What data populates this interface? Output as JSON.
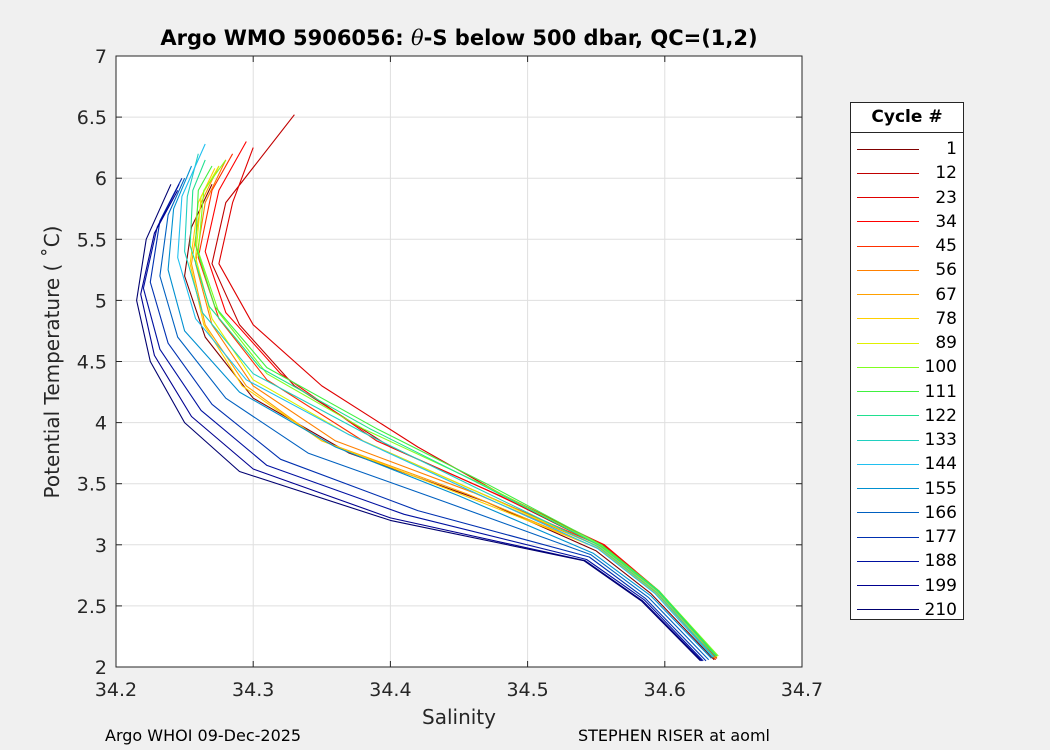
{
  "chart_data": {
    "type": "line",
    "title_prefix": "Argo WMO 5906056: ",
    "title_theta": "θ",
    "title_suffix": "-S below 500 dbar,  QC=(1,2)",
    "xlabel": "Salinity",
    "ylabel": "Potential Temperature ( ˚C)",
    "xlim": [
      34.2,
      34.7
    ],
    "ylim": [
      2,
      7
    ],
    "xticks": [
      34.2,
      34.3,
      34.4,
      34.5,
      34.6,
      34.7
    ],
    "yticks": [
      2,
      2.5,
      3,
      3.5,
      4,
      4.5,
      5,
      5.5,
      6,
      6.5,
      7
    ],
    "xtick_labels": [
      "34.2",
      "34.3",
      "34.4",
      "34.5",
      "34.6",
      "34.7"
    ],
    "ytick_labels": [
      "2",
      "2.5",
      "3",
      "3.5",
      "4",
      "4.5",
      "5",
      "5.5",
      "6",
      "6.5",
      "7"
    ],
    "grid": true,
    "legend_title": "Cycle #",
    "series": [
      {
        "name": "1",
        "color": "#800000",
        "points": [
          [
            34.636,
            2.06
          ],
          [
            34.59,
            2.6
          ],
          [
            34.55,
            2.95
          ],
          [
            34.47,
            3.35
          ],
          [
            34.37,
            3.75
          ],
          [
            34.3,
            4.2
          ],
          [
            34.265,
            4.7
          ],
          [
            34.25,
            5.2
          ],
          [
            34.255,
            5.6
          ],
          [
            34.27,
            5.95
          ]
        ]
      },
      {
        "name": "12",
        "color": "#c00000",
        "points": [
          [
            34.638,
            2.07
          ],
          [
            34.595,
            2.6
          ],
          [
            34.555,
            2.98
          ],
          [
            34.48,
            3.4
          ],
          [
            34.4,
            3.8
          ],
          [
            34.33,
            4.3
          ],
          [
            34.29,
            4.8
          ],
          [
            34.27,
            5.3
          ],
          [
            34.28,
            5.8
          ],
          [
            34.33,
            6.52
          ]
        ]
      },
      {
        "name": "23",
        "color": "#e00000",
        "points": [
          [
            34.637,
            2.06
          ],
          [
            34.595,
            2.62
          ],
          [
            34.555,
            3.0
          ],
          [
            34.48,
            3.42
          ],
          [
            34.42,
            3.8
          ],
          [
            34.35,
            4.3
          ],
          [
            34.3,
            4.8
          ],
          [
            34.275,
            5.3
          ],
          [
            34.285,
            5.8
          ],
          [
            34.3,
            6.25
          ]
        ]
      },
      {
        "name": "34",
        "color": "#ff0000",
        "points": [
          [
            34.638,
            2.08
          ],
          [
            34.596,
            2.62
          ],
          [
            34.556,
            3.0
          ],
          [
            34.47,
            3.45
          ],
          [
            34.39,
            3.85
          ],
          [
            34.32,
            4.4
          ],
          [
            34.28,
            4.9
          ],
          [
            34.265,
            5.4
          ],
          [
            34.275,
            5.9
          ],
          [
            34.295,
            6.3
          ]
        ]
      },
      {
        "name": "45",
        "color": "#ff3000",
        "points": [
          [
            34.636,
            2.07
          ],
          [
            34.595,
            2.6
          ],
          [
            34.554,
            2.99
          ],
          [
            34.46,
            3.45
          ],
          [
            34.38,
            3.85
          ],
          [
            34.31,
            4.35
          ],
          [
            34.275,
            4.85
          ],
          [
            34.26,
            5.35
          ],
          [
            34.27,
            5.9
          ],
          [
            34.285,
            6.2
          ]
        ]
      },
      {
        "name": "56",
        "color": "#ff8000",
        "points": [
          [
            34.637,
            2.07
          ],
          [
            34.595,
            2.6
          ],
          [
            34.553,
            2.98
          ],
          [
            34.46,
            3.43
          ],
          [
            34.36,
            3.85
          ],
          [
            34.3,
            4.3
          ],
          [
            34.27,
            4.8
          ],
          [
            34.258,
            5.3
          ],
          [
            34.265,
            5.8
          ],
          [
            34.28,
            6.15
          ]
        ]
      },
      {
        "name": "67",
        "color": "#ffa000",
        "points": [
          [
            34.637,
            2.07
          ],
          [
            34.594,
            2.6
          ],
          [
            34.552,
            2.97
          ],
          [
            34.455,
            3.42
          ],
          [
            34.35,
            3.85
          ],
          [
            34.295,
            4.3
          ],
          [
            34.265,
            4.8
          ],
          [
            34.255,
            5.3
          ],
          [
            34.262,
            5.8
          ],
          [
            34.275,
            6.1
          ]
        ]
      },
      {
        "name": "78",
        "color": "#ffd000",
        "points": [
          [
            34.638,
            2.08
          ],
          [
            34.594,
            2.6
          ],
          [
            34.552,
            2.97
          ],
          [
            34.45,
            3.42
          ],
          [
            34.35,
            3.85
          ],
          [
            34.292,
            4.3
          ],
          [
            34.264,
            4.8
          ],
          [
            34.254,
            5.3
          ],
          [
            34.26,
            5.8
          ],
          [
            34.272,
            6.08
          ]
        ]
      },
      {
        "name": "89",
        "color": "#e0f000",
        "points": [
          [
            34.638,
            2.08
          ],
          [
            34.595,
            2.61
          ],
          [
            34.553,
            2.98
          ],
          [
            34.46,
            3.45
          ],
          [
            34.37,
            3.9
          ],
          [
            34.3,
            4.35
          ],
          [
            34.27,
            4.85
          ],
          [
            34.258,
            5.35
          ],
          [
            34.262,
            5.85
          ],
          [
            34.275,
            6.1
          ]
        ]
      },
      {
        "name": "100",
        "color": "#80ff20",
        "points": [
          [
            34.639,
            2.09
          ],
          [
            34.596,
            2.62
          ],
          [
            34.554,
            2.99
          ],
          [
            34.47,
            3.48
          ],
          [
            34.38,
            3.95
          ],
          [
            34.31,
            4.4
          ],
          [
            34.275,
            4.9
          ],
          [
            34.26,
            5.4
          ],
          [
            34.264,
            5.9
          ],
          [
            34.28,
            6.15
          ]
        ]
      },
      {
        "name": "111",
        "color": "#40f040",
        "points": [
          [
            34.638,
            2.09
          ],
          [
            34.596,
            2.62
          ],
          [
            34.554,
            3.0
          ],
          [
            34.47,
            3.5
          ],
          [
            34.39,
            3.95
          ],
          [
            34.31,
            4.45
          ],
          [
            34.272,
            4.95
          ],
          [
            34.258,
            5.45
          ],
          [
            34.26,
            5.9
          ],
          [
            34.27,
            6.1
          ]
        ]
      },
      {
        "name": "122",
        "color": "#20e090",
        "points": [
          [
            34.637,
            2.09
          ],
          [
            34.595,
            2.62
          ],
          [
            34.553,
            2.99
          ],
          [
            34.465,
            3.5
          ],
          [
            34.385,
            3.95
          ],
          [
            34.305,
            4.45
          ],
          [
            34.268,
            4.95
          ],
          [
            34.254,
            5.45
          ],
          [
            34.256,
            5.9
          ],
          [
            34.265,
            6.15
          ]
        ]
      },
      {
        "name": "133",
        "color": "#20d0c0",
        "points": [
          [
            34.636,
            2.08
          ],
          [
            34.594,
            2.61
          ],
          [
            34.552,
            2.98
          ],
          [
            34.46,
            3.48
          ],
          [
            34.38,
            3.92
          ],
          [
            34.3,
            4.4
          ],
          [
            34.263,
            4.9
          ],
          [
            34.25,
            5.4
          ],
          [
            34.252,
            5.85
          ],
          [
            34.26,
            6.2
          ]
        ]
      },
      {
        "name": "144",
        "color": "#20c0f0",
        "points": [
          [
            34.635,
            2.08
          ],
          [
            34.593,
            2.6
          ],
          [
            34.551,
            2.97
          ],
          [
            34.455,
            3.46
          ],
          [
            34.37,
            3.9
          ],
          [
            34.295,
            4.35
          ],
          [
            34.258,
            4.85
          ],
          [
            34.245,
            5.35
          ],
          [
            34.248,
            5.85
          ],
          [
            34.265,
            6.28
          ]
        ]
      },
      {
        "name": "155",
        "color": "#0090d0",
        "points": [
          [
            34.634,
            2.07
          ],
          [
            34.59,
            2.58
          ],
          [
            34.548,
            2.93
          ],
          [
            34.45,
            3.4
          ],
          [
            34.36,
            3.8
          ],
          [
            34.29,
            4.25
          ],
          [
            34.25,
            4.75
          ],
          [
            34.238,
            5.25
          ],
          [
            34.242,
            5.75
          ],
          [
            34.255,
            6.1
          ]
        ]
      },
      {
        "name": "166",
        "color": "#0060c0",
        "points": [
          [
            34.632,
            2.06
          ],
          [
            34.588,
            2.57
          ],
          [
            34.546,
            2.92
          ],
          [
            34.44,
            3.35
          ],
          [
            34.34,
            3.75
          ],
          [
            34.28,
            4.2
          ],
          [
            34.245,
            4.7
          ],
          [
            34.232,
            5.2
          ],
          [
            34.238,
            5.7
          ],
          [
            34.25,
            6.0
          ]
        ]
      },
      {
        "name": "177",
        "color": "#0030b0",
        "points": [
          [
            34.63,
            2.05
          ],
          [
            34.586,
            2.56
          ],
          [
            34.545,
            2.9
          ],
          [
            34.42,
            3.28
          ],
          [
            34.32,
            3.7
          ],
          [
            34.27,
            4.15
          ],
          [
            34.238,
            4.65
          ],
          [
            34.225,
            5.15
          ],
          [
            34.232,
            5.65
          ],
          [
            34.248,
            6.0
          ]
        ]
      },
      {
        "name": "188",
        "color": "#0010a0",
        "points": [
          [
            34.628,
            2.05
          ],
          [
            34.585,
            2.55
          ],
          [
            34.543,
            2.88
          ],
          [
            34.41,
            3.25
          ],
          [
            34.31,
            3.65
          ],
          [
            34.262,
            4.1
          ],
          [
            34.232,
            4.6
          ],
          [
            34.22,
            5.1
          ],
          [
            34.23,
            5.6
          ],
          [
            34.246,
            5.95
          ]
        ]
      },
      {
        "name": "199",
        "color": "#000090",
        "points": [
          [
            34.627,
            2.05
          ],
          [
            34.584,
            2.54
          ],
          [
            34.542,
            2.87
          ],
          [
            34.4,
            3.22
          ],
          [
            34.3,
            3.62
          ],
          [
            34.255,
            4.05
          ],
          [
            34.228,
            4.55
          ],
          [
            34.218,
            5.05
          ],
          [
            34.228,
            5.55
          ],
          [
            34.245,
            5.9
          ]
        ]
      },
      {
        "name": "210",
        "color": "#000070",
        "points": [
          [
            34.626,
            2.05
          ],
          [
            34.583,
            2.54
          ],
          [
            34.541,
            2.87
          ],
          [
            34.4,
            3.2
          ],
          [
            34.29,
            3.6
          ],
          [
            34.25,
            4.0
          ],
          [
            34.225,
            4.5
          ],
          [
            34.215,
            5.0
          ],
          [
            34.222,
            5.5
          ],
          [
            34.24,
            5.95
          ]
        ]
      }
    ]
  },
  "footer": {
    "left": "Argo WHOI 09-Dec-2025",
    "right": "STEPHEN RISER at aoml"
  }
}
